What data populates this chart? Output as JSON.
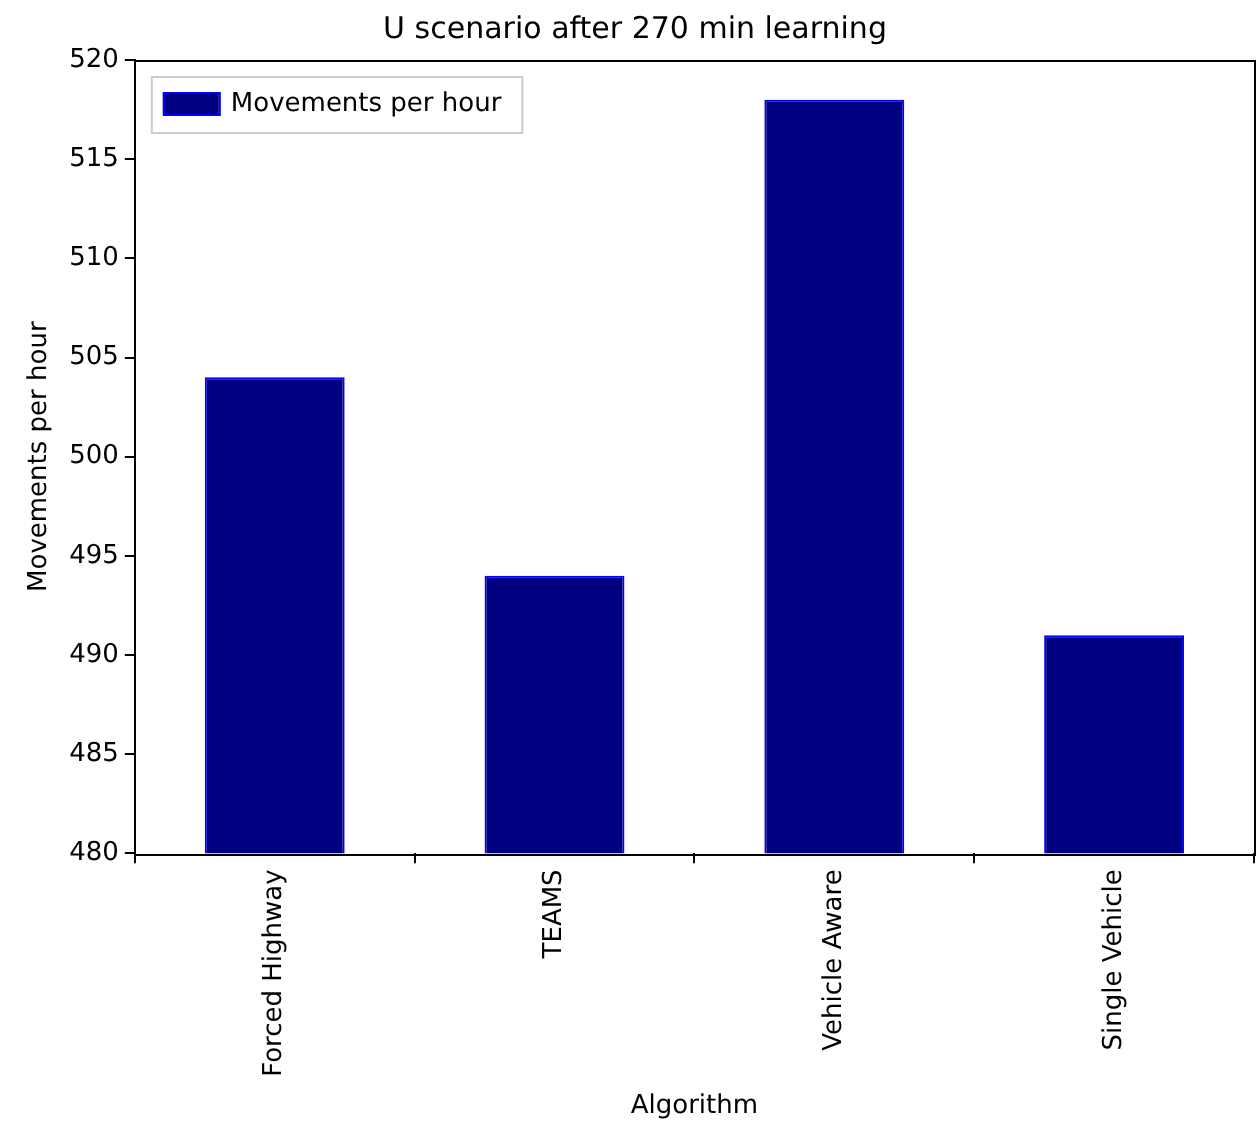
{
  "chart_data": {
    "type": "bar",
    "title": "U scenario after 270 min learning",
    "xlabel": "Algorithm",
    "ylabel": "Movements per hour",
    "categories": [
      "Forced Highway",
      "TEAMS",
      "Vehicle Aware",
      "Single Vehicle"
    ],
    "series": [
      {
        "name": "Movements per hour",
        "color": "#000080",
        "values": [
          504,
          494,
          518,
          491
        ]
      }
    ],
    "ylim": [
      480,
      520
    ],
    "yticks": [
      480,
      485,
      490,
      495,
      500,
      505,
      510,
      515,
      520
    ],
    "grid": false,
    "legend": "top left"
  }
}
